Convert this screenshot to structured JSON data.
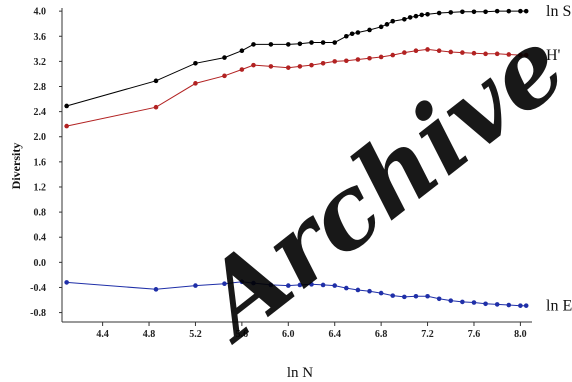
{
  "chart_data": {
    "type": "line",
    "title": "",
    "xlabel": "ln N",
    "ylabel": "Diversity",
    "xlim": [
      4.05,
      8.1
    ],
    "ylim": [
      -0.95,
      4.05
    ],
    "xticks": [
      "4.4",
      "4.8",
      "5.2",
      "5.6",
      "6.0",
      "6.4",
      "6.8",
      "7.2",
      "7.6",
      "8.0"
    ],
    "yticks": [
      "-0.8",
      "-0.4",
      "0.0",
      "0.4",
      "0.8",
      "1.2",
      "1.6",
      "2.0",
      "2.4",
      "2.8",
      "3.2",
      "3.6",
      "4.0"
    ],
    "grid": false,
    "watermark": "Archive",
    "series": [
      {
        "name": "ln S",
        "color": "#000000",
        "points": [
          [
            4.09,
            2.49
          ],
          [
            4.86,
            2.89
          ],
          [
            5.2,
            3.17
          ],
          [
            5.45,
            3.26
          ],
          [
            5.6,
            3.37
          ],
          [
            5.7,
            3.47
          ],
          [
            5.85,
            3.47
          ],
          [
            6.0,
            3.47
          ],
          [
            6.1,
            3.48
          ],
          [
            6.2,
            3.5
          ],
          [
            6.3,
            3.5
          ],
          [
            6.4,
            3.5
          ],
          [
            6.5,
            3.6
          ],
          [
            6.55,
            3.64
          ],
          [
            6.6,
            3.66
          ],
          [
            6.7,
            3.7
          ],
          [
            6.8,
            3.75
          ],
          [
            6.85,
            3.79
          ],
          [
            6.9,
            3.84
          ],
          [
            7.0,
            3.87
          ],
          [
            7.05,
            3.9
          ],
          [
            7.1,
            3.92
          ],
          [
            7.15,
            3.94
          ],
          [
            7.2,
            3.95
          ],
          [
            7.3,
            3.97
          ],
          [
            7.4,
            3.98
          ],
          [
            7.5,
            3.99
          ],
          [
            7.6,
            3.99
          ],
          [
            7.7,
            3.99
          ],
          [
            7.8,
            4.0
          ],
          [
            7.9,
            4.0
          ],
          [
            8.0,
            4.0
          ],
          [
            8.05,
            4.0
          ]
        ]
      },
      {
        "name": "H'",
        "color": "#b22222",
        "points": [
          [
            4.09,
            2.17
          ],
          [
            4.86,
            2.47
          ],
          [
            5.2,
            2.85
          ],
          [
            5.45,
            2.97
          ],
          [
            5.6,
            3.07
          ],
          [
            5.7,
            3.14
          ],
          [
            5.85,
            3.12
          ],
          [
            6.0,
            3.1
          ],
          [
            6.1,
            3.12
          ],
          [
            6.2,
            3.14
          ],
          [
            6.3,
            3.17
          ],
          [
            6.4,
            3.2
          ],
          [
            6.5,
            3.21
          ],
          [
            6.6,
            3.23
          ],
          [
            6.7,
            3.25
          ],
          [
            6.8,
            3.27
          ],
          [
            6.9,
            3.3
          ],
          [
            7.0,
            3.34
          ],
          [
            7.1,
            3.37
          ],
          [
            7.2,
            3.39
          ],
          [
            7.3,
            3.37
          ],
          [
            7.4,
            3.35
          ],
          [
            7.5,
            3.34
          ],
          [
            7.6,
            3.33
          ],
          [
            7.7,
            3.32
          ],
          [
            7.8,
            3.32
          ],
          [
            7.9,
            3.31
          ],
          [
            8.0,
            3.3
          ],
          [
            8.05,
            3.3
          ]
        ]
      },
      {
        "name": "ln E",
        "color": "#1f2fa8",
        "points": [
          [
            4.09,
            -0.32
          ],
          [
            4.86,
            -0.43
          ],
          [
            5.2,
            -0.37
          ],
          [
            5.45,
            -0.34
          ],
          [
            5.6,
            -0.31
          ],
          [
            5.7,
            -0.33
          ],
          [
            5.85,
            -0.36
          ],
          [
            6.0,
            -0.37
          ],
          [
            6.1,
            -0.36
          ],
          [
            6.2,
            -0.35
          ],
          [
            6.3,
            -0.36
          ],
          [
            6.4,
            -0.37
          ],
          [
            6.5,
            -0.41
          ],
          [
            6.6,
            -0.44
          ],
          [
            6.7,
            -0.46
          ],
          [
            6.8,
            -0.49
          ],
          [
            6.9,
            -0.53
          ],
          [
            7.0,
            -0.55
          ],
          [
            7.1,
            -0.54
          ],
          [
            7.2,
            -0.54
          ],
          [
            7.3,
            -0.58
          ],
          [
            7.4,
            -0.61
          ],
          [
            7.5,
            -0.63
          ],
          [
            7.6,
            -0.64
          ],
          [
            7.7,
            -0.66
          ],
          [
            7.8,
            -0.67
          ],
          [
            7.9,
            -0.68
          ],
          [
            8.0,
            -0.69
          ],
          [
            8.05,
            -0.69
          ]
        ]
      }
    ]
  }
}
